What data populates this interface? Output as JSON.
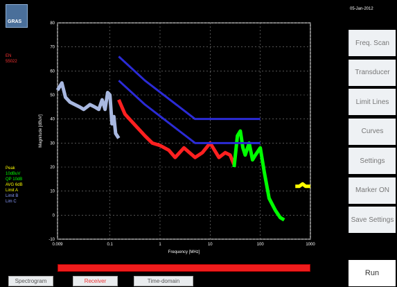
{
  "header": {
    "date": "05-Jan-2012"
  },
  "logo": {
    "text": "GRAS"
  },
  "side_labels": [
    {
      "text": "EN",
      "color": "#ff3333"
    },
    {
      "text": "55022",
      "color": "#ff3333"
    },
    {
      "text": "Peak",
      "color": "#ffff00"
    },
    {
      "text": "10dBuV",
      "color": "#00ff00"
    },
    {
      "text": "QP 10dB",
      "color": "#00ff00"
    },
    {
      "text": "AVG 6dB",
      "color": "#ffff00"
    },
    {
      "text": "Limit A",
      "color": "#ffff00"
    },
    {
      "text": "Limit B",
      "color": "#8a9cff"
    },
    {
      "text": "Lim C",
      "color": "#8a9cff"
    }
  ],
  "buttons": [
    {
      "label": "Freq. Scan"
    },
    {
      "label": "Transducer"
    },
    {
      "label": "Limit Lines"
    },
    {
      "label": "Curves"
    },
    {
      "label": "Settings"
    },
    {
      "label": "Marker ON"
    },
    {
      "label": "Save Settings"
    }
  ],
  "run_label": "Run",
  "tabs": [
    {
      "label": "Spectrogram"
    },
    {
      "label": "Receiver"
    },
    {
      "label": "Time-domain"
    }
  ],
  "active_tab": 1,
  "progress": 1.0,
  "chart_data": {
    "type": "line",
    "xlabel": "Frequency [MHz]",
    "ylabel": "Magnitude [dBuV]",
    "x_scale": "log",
    "xlim": [
      0.009,
      1000
    ],
    "ylim": [
      -10,
      80
    ],
    "x_ticks": [
      0.009,
      0.1,
      1,
      10,
      100,
      1000
    ],
    "x_tick_labels": [
      "0.009",
      "0.1",
      "1",
      "10",
      "100",
      "1000"
    ],
    "y_ticks": [
      -10,
      0,
      10,
      20,
      30,
      40,
      50,
      60,
      70,
      80
    ],
    "y_tick_labels": [
      "-10",
      "0",
      "10",
      "20",
      "30",
      "40",
      "50",
      "60",
      "70",
      "80"
    ],
    "grid": true,
    "series": [
      {
        "color": "#a8b8e0",
        "x": [
          0.009,
          0.011,
          0.013,
          0.016,
          0.02,
          0.025,
          0.03,
          0.04,
          0.05,
          0.06,
          0.07,
          0.08,
          0.09,
          0.1,
          0.11,
          0.12,
          0.13,
          0.15
        ],
        "y": [
          52,
          55,
          49,
          47,
          46,
          45,
          44,
          46,
          45,
          44,
          48,
          44,
          51,
          50,
          38,
          41,
          34,
          32
        ]
      },
      {
        "color": "#ff2020",
        "x": [
          0.15,
          0.2,
          0.3,
          0.5,
          0.7,
          1,
          1.5,
          2,
          3,
          5,
          7,
          10,
          15,
          20,
          25,
          30
        ],
        "y": [
          48,
          42,
          38,
          33,
          30,
          29,
          27,
          24,
          28,
          24,
          26,
          30,
          24,
          26,
          25,
          21
        ]
      },
      {
        "color": "#00ff00",
        "x": [
          30,
          35,
          40,
          45,
          50,
          60,
          70,
          80,
          100,
          120,
          150,
          200,
          250,
          300
        ],
        "y": [
          20,
          33,
          35,
          28,
          25,
          30,
          23,
          25,
          28,
          18,
          7,
          2,
          -1,
          -2
        ]
      },
      {
        "color": "#ffff00",
        "x": [
          500,
          600,
          700,
          800,
          900,
          1000
        ],
        "y": [
          12,
          12,
          13,
          12,
          12,
          12
        ]
      },
      {
        "color": "#2b2bd6",
        "x": [
          0.15,
          0.5,
          5,
          30,
          100
        ],
        "y": [
          66,
          56,
          40,
          40,
          40
        ]
      },
      {
        "color": "#2b2bd6",
        "x": [
          0.15,
          0.5,
          5,
          30,
          100
        ],
        "y": [
          56,
          46,
          30,
          30,
          30
        ]
      }
    ]
  }
}
